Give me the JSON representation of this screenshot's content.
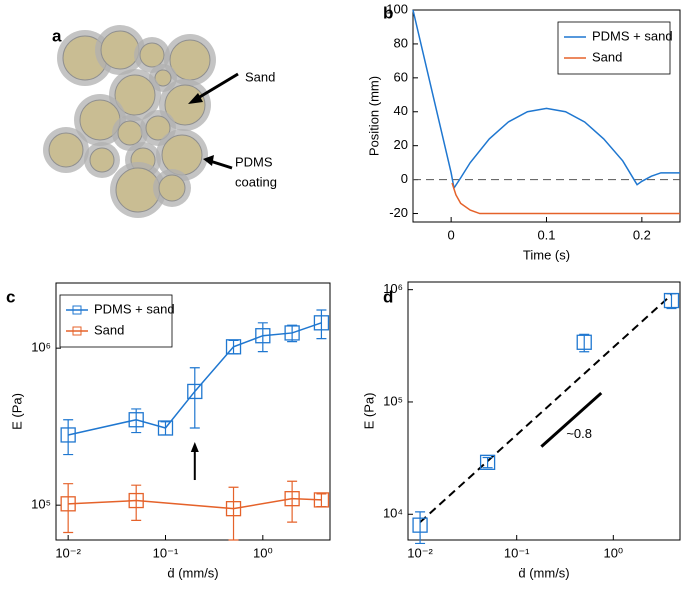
{
  "panel_labels": [
    "a",
    "b",
    "c",
    "d"
  ],
  "diagram": {
    "labels": [
      "Sand",
      "PDMS",
      "coating"
    ]
  },
  "chart_data": [
    {
      "type": "line",
      "xlabel": "Time (s)",
      "ylabel": "Position (mm)",
      "xlim": [
        -0.04,
        0.24
      ],
      "xticks": [
        0,
        0.1,
        0.2
      ],
      "ylim": [
        -25,
        100
      ],
      "yticks": [
        -20,
        0,
        20,
        40,
        60,
        80,
        100
      ],
      "hline": 0,
      "legend": "upper right",
      "series": [
        {
          "name": "PDMS + sand",
          "color": "#1f77d0",
          "x": [
            -0.04,
            -0.02,
            0,
            0.003,
            0.01,
            0.02,
            0.04,
            0.06,
            0.08,
            0.1,
            0.12,
            0.14,
            0.16,
            0.18,
            0.195,
            0.2,
            0.21,
            0.22,
            0.24
          ],
          "values": [
            100,
            52,
            4,
            -5,
            1,
            10,
            24,
            34,
            40,
            42,
            40,
            34,
            24,
            11,
            -3,
            -1,
            2,
            4,
            4
          ]
        },
        {
          "name": "Sand",
          "color": "#e5622a",
          "x": [
            0.001,
            0.005,
            0.01,
            0.02,
            0.03,
            0.1,
            0.24
          ],
          "values": [
            -2,
            -9,
            -14,
            -18,
            -20,
            -20,
            -20
          ]
        }
      ]
    },
    {
      "type": "errorbar",
      "xlabel": "ḋ (mm/s)",
      "ylabel": "E (Pa)",
      "xscale": "log",
      "yscale": "log",
      "xlim": [
        0.0075,
        4.9
      ],
      "xticks": [
        {
          "value": 0.01,
          "label": "10⁻²"
        },
        {
          "value": 0.1,
          "label": "10⁻¹"
        },
        {
          "value": 1,
          "label": "10⁰"
        }
      ],
      "ylim": [
        60000,
        2600000
      ],
      "yticks": [
        {
          "value": 100000,
          "label": "10⁵"
        },
        {
          "value": 1000000,
          "label": "10⁶"
        }
      ],
      "legend": "upper left",
      "connect": true,
      "series": [
        {
          "name": "PDMS + sand",
          "color": "#1f77d0",
          "x": [
            0.01,
            0.05,
            0.1,
            0.2,
            0.5,
            1,
            2,
            4
          ],
          "values": [
            280000,
            350000,
            310000,
            530000,
            1020000,
            1200000,
            1250000,
            1450000
          ],
          "errors": [
            70000,
            60000,
            30000,
            220000,
            100000,
            250000,
            150000,
            300000
          ]
        },
        {
          "name": "Sand",
          "color": "#e5622a",
          "x": [
            0.01,
            0.05,
            0.5,
            2,
            4
          ],
          "values": [
            102000,
            107000,
            95000,
            110000,
            108000
          ],
          "errors": [
            35000,
            27000,
            35000,
            32000,
            10000
          ]
        }
      ]
    },
    {
      "type": "errorbar",
      "xlabel": "ḋ (mm/s)",
      "ylabel": "E (Pa)",
      "xscale": "log",
      "yscale": "log",
      "xlim": [
        0.0075,
        4.9
      ],
      "xticks": [
        {
          "value": 0.01,
          "label": "10⁻²"
        },
        {
          "value": 0.1,
          "label": "10⁻¹"
        },
        {
          "value": 1,
          "label": "10⁰"
        }
      ],
      "ylim": [
        5900,
        1170000
      ],
      "yticks": [
        {
          "value": 10000,
          "label": "10⁴"
        },
        {
          "value": 100000,
          "label": "10⁵"
        },
        {
          "value": 1000000,
          "label": "10⁶"
        }
      ],
      "connect": false,
      "series": [
        {
          "color": "#1f77d0",
          "x": [
            0.01,
            0.05,
            0.5,
            4
          ],
          "values": [
            8000,
            29000,
            340000,
            800000
          ],
          "errors": [
            2500,
            3000,
            60000,
            120000
          ]
        }
      ],
      "fit": {
        "x": [
          0.01,
          4
        ],
        "values": [
          8500,
          900000
        ]
      },
      "slope_guide": {
        "x": [
          0.18,
          0.75
        ],
        "values": [
          40000,
          120000
        ],
        "label": "~0.8"
      }
    }
  ]
}
